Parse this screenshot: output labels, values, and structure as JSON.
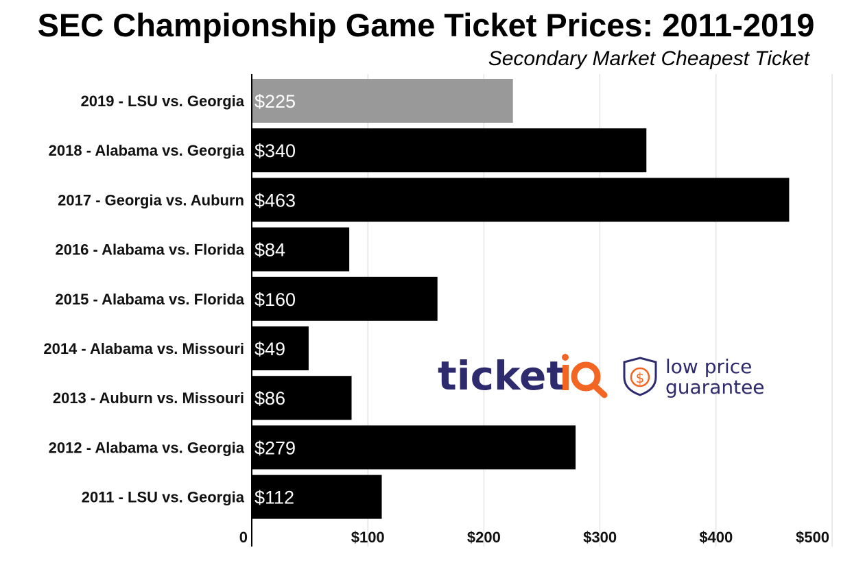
{
  "chart_data": {
    "type": "bar",
    "orientation": "horizontal",
    "title": "SEC Championship Game Ticket Prices: 2011-2019",
    "subtitle": "Secondary Market Cheapest Ticket",
    "categories": [
      "2019 - LSU vs. Georgia",
      "2018 - Alabama vs. Georgia",
      "2017 - Georgia vs. Auburn",
      "2016 - Alabama vs. Florida",
      "2015 - Alabama vs. Florida",
      "2014 - Alabama vs. Missouri",
      "2013 - Auburn vs. Missouri",
      "2012 - Alabama vs. Georgia",
      "2011 - LSU vs. Georgia"
    ],
    "values": [
      225,
      340,
      463,
      84,
      160,
      49,
      86,
      279,
      112
    ],
    "value_labels": [
      "$225",
      "$340",
      "$463",
      "$84",
      "$160",
      "$49",
      "$86",
      "$279",
      "$112"
    ],
    "bar_colors": [
      "#999999",
      "#000000",
      "#000000",
      "#000000",
      "#000000",
      "#000000",
      "#000000",
      "#000000",
      "#000000"
    ],
    "xlim": [
      0,
      500
    ],
    "xticks": [
      0,
      100,
      200,
      300,
      400,
      500
    ],
    "xtick_labels": [
      "0",
      "$100",
      "$200",
      "$300",
      "$400",
      "$500"
    ],
    "grid": true,
    "xlabel": "",
    "ylabel": ""
  },
  "watermark": {
    "brand_main": "ticket",
    "brand_accent": "iQ",
    "tagline_line1": "low price",
    "tagline_line2": "guarantee",
    "shield_symbol": "$",
    "brand_color": "#2e2a6e",
    "accent_color": "#f26522"
  }
}
